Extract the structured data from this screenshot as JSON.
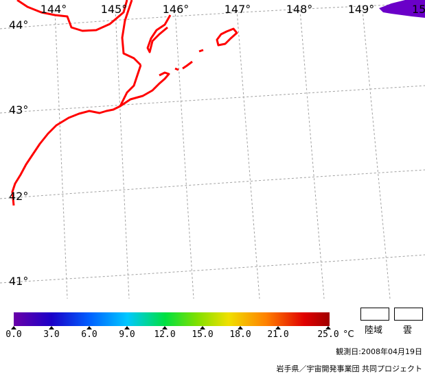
{
  "map": {
    "longitude_labels": [
      "144°",
      "145°",
      "146°",
      "147°",
      "148°",
      "149°",
      "15"
    ],
    "latitude_labels": [
      "44°",
      "43°",
      "42°",
      "41°"
    ],
    "colors": {
      "coastline": "#ff0000",
      "grid": "#a0a0a0",
      "cloud": "#6a00c8"
    }
  },
  "legend": {
    "tick_labels": [
      "0.0",
      "3.0",
      "6.0",
      "9.0",
      "12.0",
      "15.0",
      "18.0",
      "21.0",
      "25.0"
    ],
    "unit": "°C",
    "land_label": "陸域",
    "cloud_label": "雲"
  },
  "footer": {
    "observation_date": "観測日:2008年04月19日",
    "credit": "岩手県／宇宙開発事業団 共同プロジェクト"
  }
}
